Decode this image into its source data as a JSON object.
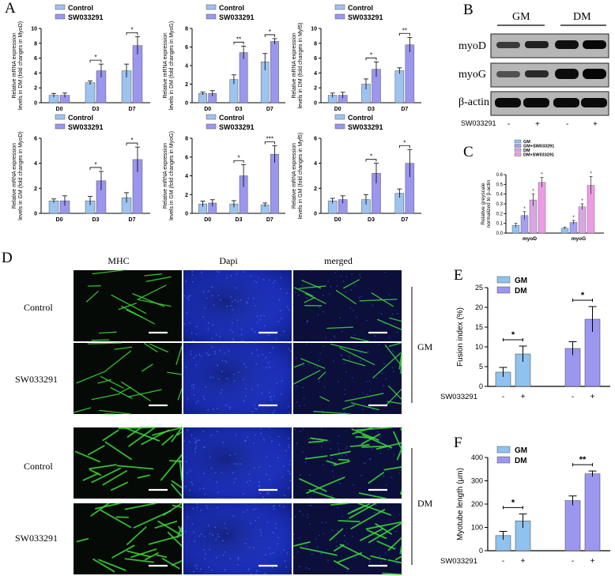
{
  "panel_letters": {
    "a": "A",
    "b": "B",
    "c": "C",
    "d": "D",
    "e": "E",
    "f": "F"
  },
  "colors": {
    "control": "#9dc3ef",
    "treated": "#9b96ee",
    "gm": "#8fc2ee",
    "gm_sw": "#a5a0ee",
    "dm": "#d8a6e2",
    "dm_sw": "#ee9be6",
    "axis": "#000000",
    "micro_bg": "#0a0a14"
  },
  "panel_a_legend": {
    "control": "Control",
    "treated": "SW033291"
  },
  "panel_b": {
    "groups": [
      "GM",
      "DM"
    ],
    "proteins": [
      "myoD",
      "myoG",
      "β-actin"
    ],
    "treatment_label": "SW033291",
    "treatment_signs": [
      "-",
      "+",
      "-",
      "+"
    ]
  },
  "panel_c_legend": [
    "GM",
    "GM+SW033291",
    "DM",
    "DM+SW033291"
  ],
  "panel_d": {
    "columns": [
      "MHC",
      "Dapi",
      "merged"
    ],
    "rows": [
      "Control",
      "SW033291",
      "Control",
      "SW033291"
    ],
    "groups": [
      "GM",
      "DM"
    ]
  },
  "panel_ef_legend": {
    "gm": "GM",
    "dm": "DM"
  },
  "panel_ef_treatment": {
    "label": "SW033291",
    "signs": [
      "-",
      "+",
      "-",
      "+"
    ]
  },
  "chart_data": [
    {
      "id": "A1",
      "type": "bar",
      "categories": [
        "D0",
        "D3",
        "D7"
      ],
      "ylabel": "Relative mRNA expression levels in DM (fold changes in MyoD)",
      "ylim": [
        0,
        10
      ],
      "yticks": [
        "0",
        "2",
        "4",
        "6",
        "8",
        "10"
      ],
      "series": [
        {
          "name": "Control",
          "values": [
            1.0,
            2.7,
            4.3
          ],
          "errors": [
            0.25,
            0.25,
            0.9
          ]
        },
        {
          "name": "SW033291",
          "values": [
            1.0,
            4.3,
            7.7
          ],
          "errors": [
            0.3,
            0.9,
            1.2
          ]
        }
      ],
      "significance": [
        "",
        "*",
        "*"
      ]
    },
    {
      "id": "A2",
      "type": "bar",
      "categories": [
        "D0",
        "D3",
        "D7"
      ],
      "ylabel": "Relative mRNA expression levels in DM (fold changes in MyoG)",
      "ylim": [
        0,
        8
      ],
      "yticks": [
        "0",
        "2",
        "4",
        "6",
        "8"
      ],
      "series": [
        {
          "name": "Control",
          "values": [
            1.0,
            2.5,
            4.4
          ],
          "errors": [
            0.15,
            0.5,
            0.9
          ]
        },
        {
          "name": "SW033291",
          "values": [
            1.0,
            5.4,
            6.6
          ],
          "errors": [
            0.3,
            0.7,
            0.3
          ]
        }
      ],
      "significance": [
        "",
        "**",
        "*"
      ]
    },
    {
      "id": "A3",
      "type": "bar",
      "categories": [
        "D0",
        "D3",
        "D7"
      ],
      "ylabel": "Relative mRNA expression levels in DM (fold changes in Myf5)",
      "ylim": [
        0,
        10
      ],
      "yticks": [
        "0",
        "2",
        "4",
        "6",
        "8",
        "10"
      ],
      "series": [
        {
          "name": "Control",
          "values": [
            1.0,
            2.5,
            4.3
          ],
          "errors": [
            0.3,
            0.7,
            0.4
          ]
        },
        {
          "name": "SW033291",
          "values": [
            1.0,
            4.5,
            7.8
          ],
          "errors": [
            0.4,
            1.0,
            1.0
          ]
        }
      ],
      "significance": [
        "",
        "*",
        "**"
      ]
    },
    {
      "id": "A4",
      "type": "bar",
      "categories": [
        "D0",
        "D3",
        "D7"
      ],
      "ylabel": "Relative mRNA expression levels in GM (fold changes in MyoD)",
      "ylim": [
        0,
        6
      ],
      "yticks": [
        "0",
        "2",
        "4",
        "6"
      ],
      "series": [
        {
          "name": "Control",
          "values": [
            1.0,
            1.0,
            1.25
          ],
          "errors": [
            0.15,
            0.35,
            0.4
          ]
        },
        {
          "name": "SW033291",
          "values": [
            1.0,
            2.6,
            4.3
          ],
          "errors": [
            0.4,
            0.75,
            1.0
          ]
        }
      ],
      "significance": [
        "",
        "*",
        "*"
      ]
    },
    {
      "id": "A5",
      "type": "bar",
      "categories": [
        "D0",
        "D3",
        "D7"
      ],
      "ylabel": "Relative mRNA expression levels in GM (fold changes in MyoG)",
      "ylim": [
        0,
        8
      ],
      "yticks": [
        "0",
        "2",
        "4",
        "6",
        "8"
      ],
      "series": [
        {
          "name": "Control",
          "values": [
            1.0,
            1.0,
            0.9
          ],
          "errors": [
            0.3,
            0.35,
            0.2
          ]
        },
        {
          "name": "SW033291",
          "values": [
            1.1,
            4.0,
            6.3
          ],
          "errors": [
            0.35,
            1.2,
            0.9
          ]
        }
      ],
      "significance": [
        "",
        "*",
        "***"
      ]
    },
    {
      "id": "A6",
      "type": "bar",
      "categories": [
        "D0",
        "D3",
        "D7"
      ],
      "ylabel": "Relative mRNA expression levels in GM (fold changes in Myf5)",
      "ylim": [
        0,
        6
      ],
      "yticks": [
        "0",
        "2",
        "4",
        "6"
      ],
      "series": [
        {
          "name": "Control",
          "values": [
            1.0,
            1.1,
            1.6
          ],
          "errors": [
            0.2,
            0.4,
            0.35
          ]
        },
        {
          "name": "SW033291",
          "values": [
            1.1,
            3.2,
            4.0
          ],
          "errors": [
            0.3,
            0.8,
            1.1
          ]
        }
      ],
      "significance": [
        "",
        "*",
        "*"
      ]
    },
    {
      "id": "C",
      "type": "bar",
      "categories": [
        "myoD",
        "myoG"
      ],
      "ylabel": "Relative greyscale normalized to β-actin",
      "ylim": [
        0,
        0.6
      ],
      "yticks": [
        "0.0",
        "0.1",
        "0.2",
        "0.3",
        "0.4",
        "0.5",
        "0.6"
      ],
      "series": [
        {
          "name": "GM",
          "values": [
            0.08,
            0.05
          ],
          "errors": [
            0.02,
            0.01
          ]
        },
        {
          "name": "GM+SW033291",
          "values": [
            0.18,
            0.11
          ],
          "errors": [
            0.04,
            0.02
          ]
        },
        {
          "name": "DM",
          "values": [
            0.34,
            0.27
          ],
          "errors": [
            0.06,
            0.03
          ]
        },
        {
          "name": "DM+SW033291",
          "values": [
            0.52,
            0.49
          ],
          "errors": [
            0.05,
            0.09
          ]
        }
      ],
      "significance": [
        "*",
        "*"
      ]
    },
    {
      "id": "E",
      "type": "bar",
      "categories": [
        "GM -",
        "GM +",
        "DM -",
        "DM +"
      ],
      "ylabel": "Fusion index (%)",
      "ylim": [
        0,
        25
      ],
      "yticks": [
        "0",
        "5",
        "10",
        "15",
        "20",
        "25"
      ],
      "values": [
        3.6,
        8.2,
        9.6,
        17.0
      ],
      "errors": [
        1.2,
        2.0,
        1.7,
        3.2
      ],
      "significance": [
        "*",
        "*"
      ]
    },
    {
      "id": "F",
      "type": "bar",
      "categories": [
        "GM -",
        "GM +",
        "DM -",
        "DM +"
      ],
      "ylabel": "Myotube length (μm)",
      "ylim": [
        0,
        400
      ],
      "yticks": [
        "0",
        "100",
        "200",
        "300",
        "400"
      ],
      "values": [
        65,
        128,
        215,
        330
      ],
      "errors": [
        18,
        30,
        20,
        12
      ],
      "significance": [
        "*",
        "**"
      ]
    }
  ]
}
